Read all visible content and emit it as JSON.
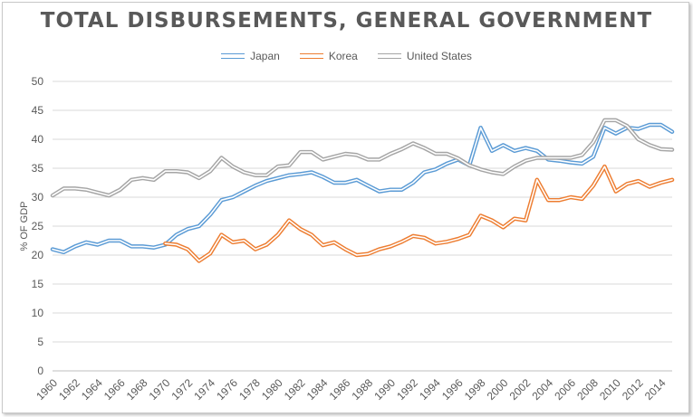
{
  "title": "TOTAL DISBURSEMENTS, GENERAL GOVERNMENT",
  "legend": [
    {
      "name": "Japan",
      "key": "japan"
    },
    {
      "name": "Korea",
      "key": "korea"
    },
    {
      "name": "United States",
      "key": "us"
    }
  ],
  "chart_data": {
    "type": "line",
    "title": "TOTAL DISBURSEMENTS, GENERAL GOVERNMENT",
    "xlabel": "",
    "ylabel": "% OF GDP",
    "ylim": [
      0,
      50
    ],
    "yticks": [
      0,
      5,
      10,
      15,
      20,
      25,
      30,
      35,
      40,
      45,
      50
    ],
    "xlim": [
      1960,
      2015
    ],
    "xticks": [
      1960,
      1962,
      1964,
      1966,
      1968,
      1970,
      1972,
      1974,
      1976,
      1978,
      1980,
      1982,
      1984,
      1986,
      1988,
      1990,
      1992,
      1994,
      1996,
      1998,
      2000,
      2002,
      2004,
      2006,
      2008,
      2010,
      2012,
      2014
    ],
    "grid": true,
    "legend_position": "top",
    "line_style": "double",
    "series": [
      {
        "name": "Japan",
        "color": "#5b9bd5",
        "x": [
          1960,
          1961,
          1962,
          1963,
          1964,
          1965,
          1966,
          1967,
          1968,
          1969,
          1970,
          1971,
          1972,
          1973,
          1974,
          1975,
          1976,
          1977,
          1978,
          1979,
          1980,
          1981,
          1982,
          1983,
          1984,
          1985,
          1986,
          1987,
          1988,
          1989,
          1990,
          1991,
          1992,
          1993,
          1994,
          1995,
          1996,
          1997,
          1998,
          1999,
          2000,
          2001,
          2002,
          2003,
          2004,
          2005,
          2006,
          2007,
          2008,
          2009,
          2010,
          2011,
          2012,
          2013,
          2014,
          2015
        ],
        "y": [
          21,
          20.5,
          21.5,
          22.2,
          21.8,
          22.5,
          22.5,
          21.5,
          21.5,
          21.3,
          21.8,
          23.5,
          24.5,
          25,
          27,
          29.5,
          30,
          31,
          32,
          32.8,
          33.3,
          33.8,
          34,
          34.3,
          33.5,
          32.5,
          32.5,
          33,
          32,
          31,
          31.3,
          31.3,
          32.5,
          34.3,
          34.8,
          35.8,
          36.5,
          35.5,
          42,
          38,
          39,
          38,
          38.5,
          38,
          36.5,
          36.3,
          36,
          35.8,
          37,
          42,
          41,
          42,
          41.8,
          42.5,
          42.5,
          41.3
        ]
      },
      {
        "name": "Korea",
        "color": "#ed7d31",
        "x": [
          1970,
          1971,
          1972,
          1973,
          1974,
          1975,
          1976,
          1977,
          1978,
          1979,
          1980,
          1981,
          1982,
          1983,
          1984,
          1985,
          1986,
          1987,
          1988,
          1989,
          1990,
          1991,
          1992,
          1993,
          1994,
          1995,
          1996,
          1997,
          1998,
          1999,
          2000,
          2001,
          2002,
          2003,
          2004,
          2005,
          2006,
          2007,
          2008,
          2009,
          2010,
          2011,
          2012,
          2013,
          2014,
          2015
        ],
        "y": [
          22,
          21.8,
          21,
          19,
          20.3,
          23.5,
          22.2,
          22.5,
          21,
          21.8,
          23.5,
          26,
          24.5,
          23.5,
          21.7,
          22.2,
          21,
          20,
          20.2,
          21,
          21.5,
          22.3,
          23.3,
          23,
          22,
          22.3,
          22.8,
          23.5,
          26.8,
          26,
          24.8,
          26.3,
          26,
          33,
          29.5,
          29.5,
          30,
          29.7,
          32,
          35.3,
          31,
          32.3,
          32.8,
          31.8,
          32.5,
          33
        ]
      },
      {
        "name": "United States",
        "color": "#a5a5a5",
        "x": [
          1960,
          1961,
          1962,
          1963,
          1964,
          1965,
          1966,
          1967,
          1968,
          1969,
          1970,
          1971,
          1972,
          1973,
          1974,
          1975,
          1976,
          1977,
          1978,
          1979,
          1980,
          1981,
          1982,
          1983,
          1984,
          1985,
          1986,
          1987,
          1988,
          1989,
          1990,
          1991,
          1992,
          1993,
          1994,
          1995,
          1996,
          1997,
          1998,
          1999,
          2000,
          2001,
          2002,
          2003,
          2004,
          2005,
          2006,
          2007,
          2008,
          2009,
          2010,
          2011,
          2012,
          2013,
          2014,
          2015
        ],
        "y": [
          30.3,
          31.5,
          31.5,
          31.3,
          30.8,
          30.3,
          31.3,
          33,
          33.3,
          33,
          34.5,
          34.5,
          34.3,
          33.3,
          34.5,
          36.8,
          35.3,
          34.3,
          33.8,
          33.8,
          35.3,
          35.5,
          37.8,
          37.8,
          36.5,
          37,
          37.5,
          37.3,
          36.5,
          36.5,
          37.5,
          38.3,
          39.3,
          38.5,
          37.5,
          37.5,
          36.7,
          35.5,
          34.8,
          34.3,
          34,
          35.3,
          36.3,
          36.8,
          36.8,
          36.8,
          36.8,
          37.3,
          39.5,
          43.3,
          43.3,
          42.3,
          40,
          39,
          38.3,
          38.2
        ]
      }
    ]
  }
}
